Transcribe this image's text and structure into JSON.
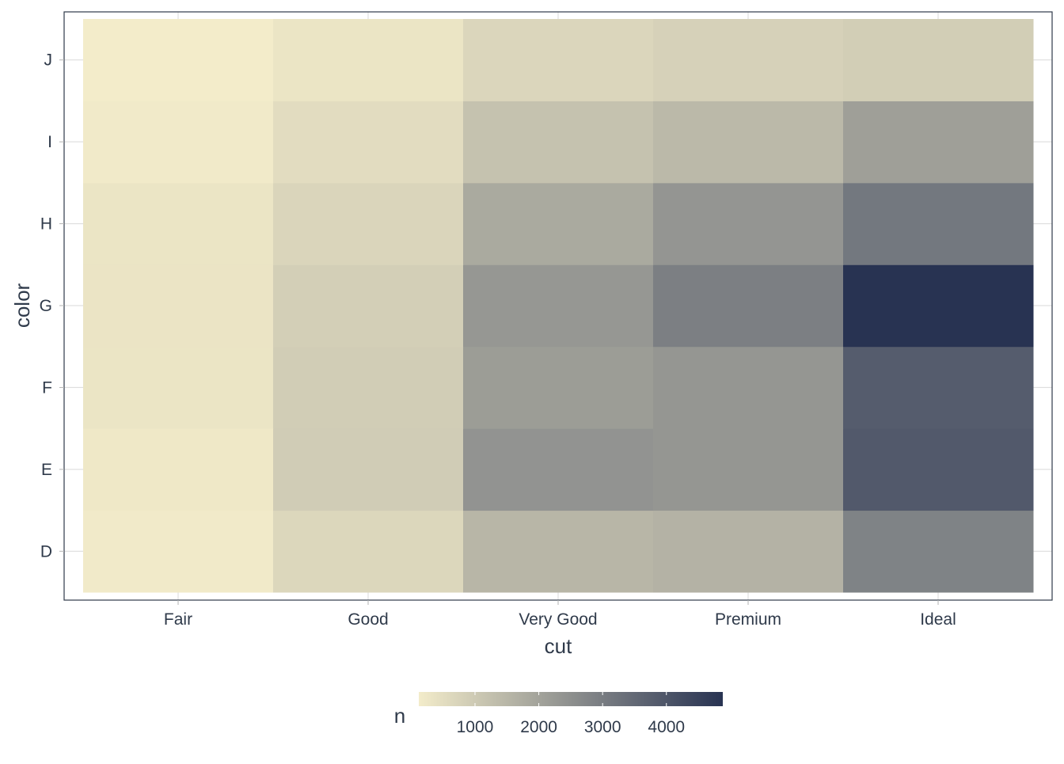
{
  "chart_data": {
    "type": "heatmap",
    "xlabel": "cut",
    "ylabel": "color",
    "x_categories": [
      "Fair",
      "Good",
      "Very Good",
      "Premium",
      "Ideal"
    ],
    "y_categories": [
      "D",
      "E",
      "F",
      "G",
      "H",
      "I",
      "J"
    ],
    "values": [
      [
        163,
        662,
        1513,
        1603,
        2834
      ],
      [
        224,
        933,
        2400,
        2337,
        3903
      ],
      [
        312,
        909,
        2164,
        2331,
        3826
      ],
      [
        314,
        871,
        2299,
        2924,
        4884
      ],
      [
        303,
        702,
        1824,
        2360,
        3115
      ],
      [
        175,
        522,
        1204,
        1428,
        2093
      ],
      [
        119,
        307,
        678,
        808,
        896
      ]
    ],
    "legend": {
      "title": "n",
      "position": "bottom",
      "ticks": [
        1000,
        2000,
        3000,
        4000
      ],
      "tick_labels": [
        "1000",
        "2000",
        "3000",
        "4000"
      ],
      "range": [
        119,
        4884
      ],
      "low_color": "#f3ecca",
      "high_color": "#283352"
    },
    "grid": true,
    "panel_border": "#2f3a4a",
    "grid_color": "#d9d9d9"
  }
}
